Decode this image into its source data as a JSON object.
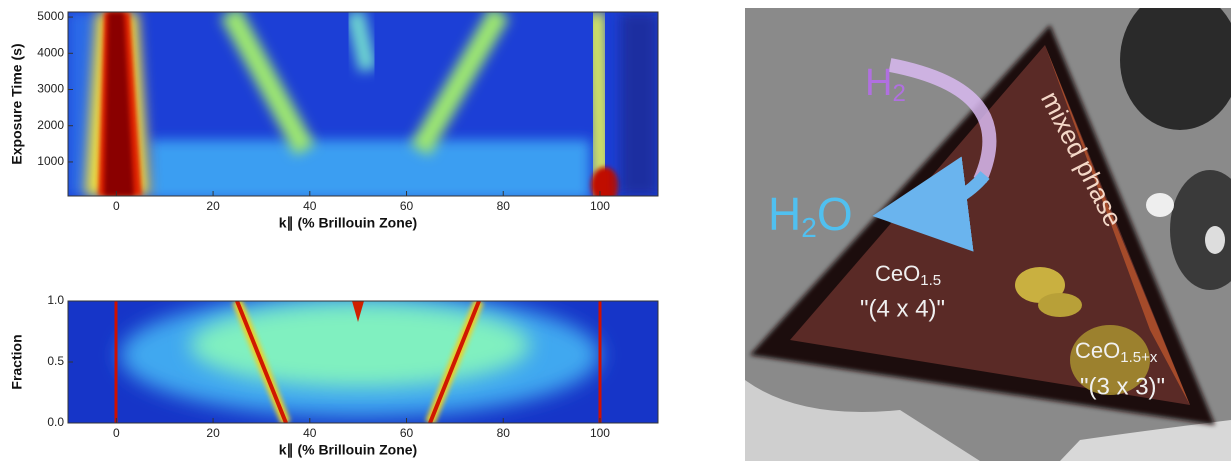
{
  "chart_data": [
    {
      "type": "heatmap",
      "ylabel": "Exposure Time (s)",
      "xlabel": "k∥ (% Brillouin Zone)",
      "xlim": [
        -10,
        112
      ],
      "xticks": [
        0,
        20,
        40,
        60,
        80,
        100
      ],
      "ylim": [
        60,
        5140
      ],
      "yticks": [
        1000,
        2000,
        3000,
        4000,
        5000
      ]
    },
    {
      "type": "heatmap",
      "ylabel": "Fraction",
      "xlabel": "k∥ (% Brillouin Zone)",
      "xlim": [
        -10,
        112
      ],
      "xticks": [
        0,
        20,
        40,
        60,
        80,
        100
      ],
      "ylim": [
        0,
        1
      ],
      "yticks": [
        {
          "value": 0,
          "label": "0.0"
        },
        {
          "value": 0.5,
          "label": "0.5"
        },
        {
          "value": 1,
          "label": "1.0"
        }
      ]
    }
  ],
  "image": {
    "h2": [
      "H",
      "2"
    ],
    "h2o": [
      "H",
      "2",
      "O"
    ],
    "mixed": "mixed phase",
    "ceo15": [
      "CeO",
      "1.5"
    ],
    "ceo15_label": "\"(4 x 4)\"",
    "ceo15x": [
      "CeO",
      "1.5+x"
    ],
    "ceo15x_label": "\"(3 x 3)\""
  }
}
